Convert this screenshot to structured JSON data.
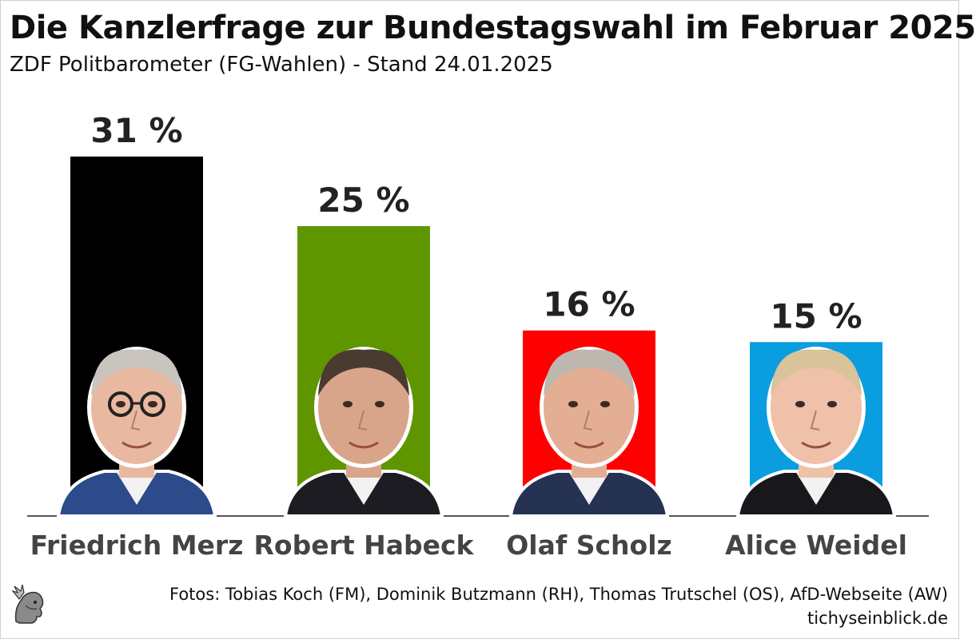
{
  "chart_data": {
    "type": "bar",
    "title": "Die Kanzlerfrage zur Bundestagswahl im Februar 2025",
    "subtitle": "ZDF Politbarometer (FG-Wahlen) - Stand 24.01.2025",
    "categories": [
      "Friedrich Merz",
      "Robert Habeck",
      "Olaf Scholz",
      "Alice Weidel"
    ],
    "values": [
      31,
      25,
      16,
      15
    ],
    "value_labels": [
      "31 %",
      "25 %",
      "16 %",
      "15 %"
    ],
    "colors": [
      "#000000",
      "#5f9600",
      "#ff0000",
      "#0a9ee0"
    ],
    "unit": "%",
    "ylim": [
      0,
      31
    ],
    "grid": false,
    "xlabel": "",
    "ylabel": ""
  },
  "footer": {
    "credit": "Fotos: Tobias Koch (FM), Dominik Butzmann (RH), Thomas Trutschel (OS), AfD-Webseite (AW)",
    "site": "tichyseinblick.de"
  },
  "icons": {
    "portrait": "person-portrait-icon",
    "logo": "mercury-head-logo-icon"
  }
}
